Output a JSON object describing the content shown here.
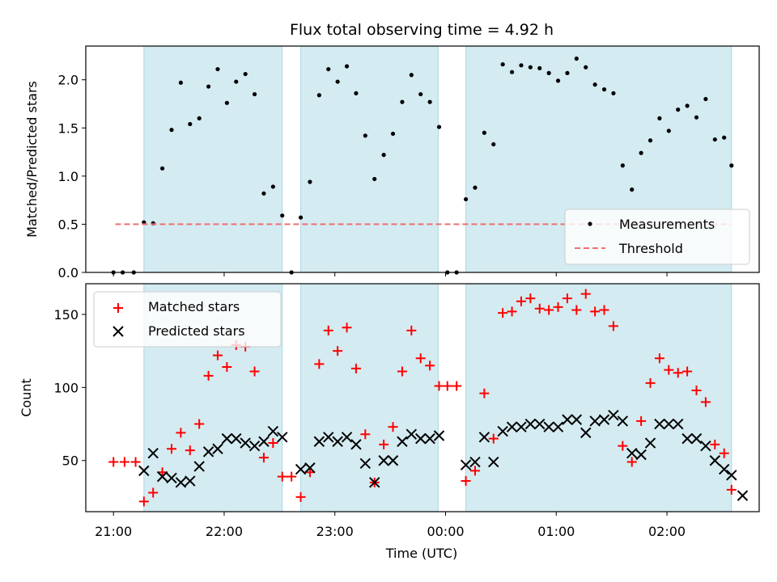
{
  "chart_data": {
    "type": "scatter",
    "title": "Flux total observing time = 4.92 h",
    "xlabel": "Time (UTC)",
    "xtick_labels": [
      "21:00",
      "22:00",
      "23:00",
      "00:00",
      "01:00",
      "02:00"
    ],
    "x_unit": "minutes after 21:00 UTC",
    "xlim": [
      -15,
      350
    ],
    "shaded_intervals": [
      [
        16.5,
        91.5
      ],
      [
        101.5,
        176
      ],
      [
        191,
        335
      ]
    ],
    "shade_color": "#d4ebf1",
    "panels": [
      {
        "ylabel": "Matched/Predicted stars",
        "ylim": [
          0,
          2.35
        ],
        "yticks": [
          0.0,
          0.5,
          1.0,
          1.5,
          2.0
        ],
        "ytick_labels": [
          "0.0",
          "0.5",
          "1.0",
          "1.5",
          "2.0"
        ],
        "legend_position": "lower-right",
        "series": [
          {
            "name": "Measurements",
            "marker": "dot",
            "color": "#000000",
            "points": [
              [
                0,
                0.0
              ],
              [
                5,
                0.0
              ],
              [
                11,
                0.0
              ],
              [
                16.5,
                0.52
              ],
              [
                21.5,
                0.51
              ],
              [
                26.5,
                1.08
              ],
              [
                31.5,
                1.48
              ],
              [
                36.5,
                1.97
              ],
              [
                41.5,
                1.54
              ],
              [
                46.5,
                1.6
              ],
              [
                51.5,
                1.93
              ],
              [
                56.5,
                2.11
              ],
              [
                61.5,
                1.76
              ],
              [
                66.5,
                1.98
              ],
              [
                71.5,
                2.06
              ],
              [
                76.5,
                1.85
              ],
              [
                81.5,
                0.82
              ],
              [
                86.5,
                0.89
              ],
              [
                91.5,
                0.59
              ],
              [
                96.5,
                0.0
              ],
              [
                101.5,
                0.57
              ],
              [
                106.5,
                0.94
              ],
              [
                111.5,
                1.84
              ],
              [
                116.5,
                2.11
              ],
              [
                121.5,
                1.98
              ],
              [
                126.5,
                2.14
              ],
              [
                131.5,
                1.86
              ],
              [
                136.5,
                1.42
              ],
              [
                141.5,
                0.97
              ],
              [
                146.5,
                1.22
              ],
              [
                151.5,
                1.44
              ],
              [
                156.5,
                1.77
              ],
              [
                161.5,
                2.05
              ],
              [
                166.5,
                1.85
              ],
              [
                171.5,
                1.77
              ],
              [
                176.5,
                1.51
              ],
              [
                181,
                0.0
              ],
              [
                186,
                0.0
              ],
              [
                191,
                0.76
              ],
              [
                196,
                0.88
              ],
              [
                201,
                1.45
              ],
              [
                206,
                1.33
              ],
              [
                211,
                2.16
              ],
              [
                216,
                2.08
              ],
              [
                221,
                2.15
              ],
              [
                226,
                2.13
              ],
              [
                231,
                2.12
              ],
              [
                236,
                2.07
              ],
              [
                241,
                1.99
              ],
              [
                246,
                2.07
              ],
              [
                251,
                2.22
              ],
              [
                256,
                2.13
              ],
              [
                261,
                1.95
              ],
              [
                266,
                1.9
              ],
              [
                271,
                1.86
              ],
              [
                276,
                1.11
              ],
              [
                281,
                0.86
              ],
              [
                286,
                1.24
              ],
              [
                291,
                1.37
              ],
              [
                296,
                1.6
              ],
              [
                301,
                1.47
              ],
              [
                306,
                1.69
              ],
              [
                311,
                1.73
              ],
              [
                316,
                1.61
              ],
              [
                321,
                1.8
              ],
              [
                326,
                1.38
              ],
              [
                331,
                1.4
              ],
              [
                335,
                1.11
              ]
            ]
          },
          {
            "name": "Threshold",
            "marker": "dashed-line",
            "color": "#f07070",
            "y": 0.5,
            "x_range": [
              1,
              335
            ]
          }
        ]
      },
      {
        "ylabel": "Count",
        "ylim": [
          15,
          171
        ],
        "yticks": [
          50,
          100,
          150
        ],
        "ytick_labels": [
          "50",
          "100",
          "150"
        ],
        "legend_position": "upper-left",
        "series": [
          {
            "name": "Matched stars",
            "marker": "plus",
            "color": "#ff0000",
            "points": [
              [
                0,
                49
              ],
              [
                6,
                49
              ],
              [
                12,
                49
              ],
              [
                16.5,
                22
              ],
              [
                21.5,
                28
              ],
              [
                26.5,
                42
              ],
              [
                31.5,
                58
              ],
              [
                36.5,
                69
              ],
              [
                41.5,
                57
              ],
              [
                46.5,
                75
              ],
              [
                51.5,
                108
              ],
              [
                56.5,
                122
              ],
              [
                61.5,
                114
              ],
              [
                66.5,
                129
              ],
              [
                71.5,
                128
              ],
              [
                76.5,
                111
              ],
              [
                81.5,
                52
              ],
              [
                86.5,
                62
              ],
              [
                91.5,
                39
              ],
              [
                96.5,
                39
              ],
              [
                101.5,
                25
              ],
              [
                106.5,
                42
              ],
              [
                111.5,
                116
              ],
              [
                116.5,
                139
              ],
              [
                121.5,
                125
              ],
              [
                126.5,
                141
              ],
              [
                131.5,
                113
              ],
              [
                136.5,
                68
              ],
              [
                141.5,
                35
              ],
              [
                146.5,
                61
              ],
              [
                151.5,
                73
              ],
              [
                156.5,
                111
              ],
              [
                161.5,
                139
              ],
              [
                166.5,
                120
              ],
              [
                171.5,
                115
              ],
              [
                176.5,
                101
              ],
              [
                181,
                101
              ],
              [
                186,
                101
              ],
              [
                191,
                36
              ],
              [
                196,
                43
              ],
              [
                201,
                96
              ],
              [
                206,
                65
              ],
              [
                211,
                151
              ],
              [
                216,
                152
              ],
              [
                221,
                159
              ],
              [
                226,
                161
              ],
              [
                231,
                154
              ],
              [
                236,
                153
              ],
              [
                241,
                155
              ],
              [
                246,
                161
              ],
              [
                251,
                153
              ],
              [
                256,
                164
              ],
              [
                261,
                152
              ],
              [
                266,
                153
              ],
              [
                271,
                142
              ],
              [
                276,
                60
              ],
              [
                281,
                49
              ],
              [
                286,
                77
              ],
              [
                291,
                103
              ],
              [
                296,
                120
              ],
              [
                301,
                112
              ],
              [
                306,
                110
              ],
              [
                311,
                111
              ],
              [
                316,
                98
              ],
              [
                321,
                90
              ],
              [
                326,
                61
              ],
              [
                331,
                55
              ],
              [
                335,
                30
              ]
            ]
          },
          {
            "name": "Predicted stars",
            "marker": "x",
            "color": "#000000",
            "points": [
              [
                16.5,
                43
              ],
              [
                21.5,
                55
              ],
              [
                26.5,
                39
              ],
              [
                31.5,
                38
              ],
              [
                36.5,
                35
              ],
              [
                41.5,
                36
              ],
              [
                46.5,
                46
              ],
              [
                51.5,
                56
              ],
              [
                56.5,
                58
              ],
              [
                61.5,
                65
              ],
              [
                66.5,
                65
              ],
              [
                71.5,
                62
              ],
              [
                76.5,
                60
              ],
              [
                81.5,
                63
              ],
              [
                86.5,
                70
              ],
              [
                91.5,
                66
              ],
              [
                101.5,
                44
              ],
              [
                106.5,
                45
              ],
              [
                111.5,
                63
              ],
              [
                116.5,
                66
              ],
              [
                121.5,
                63
              ],
              [
                126.5,
                66
              ],
              [
                131.5,
                61
              ],
              [
                136.5,
                48
              ],
              [
                141.5,
                35
              ],
              [
                146.5,
                50
              ],
              [
                151.5,
                50
              ],
              [
                156.5,
                63
              ],
              [
                161.5,
                68
              ],
              [
                166.5,
                65
              ],
              [
                171.5,
                65
              ],
              [
                176.5,
                67
              ],
              [
                191,
                47
              ],
              [
                196,
                49
              ],
              [
                201,
                66
              ],
              [
                206,
                49
              ],
              [
                211,
                70
              ],
              [
                216,
                73
              ],
              [
                221,
                73
              ],
              [
                226,
                75
              ],
              [
                231,
                75
              ],
              [
                236,
                73
              ],
              [
                241,
                73
              ],
              [
                246,
                78
              ],
              [
                251,
                78
              ],
              [
                256,
                69
              ],
              [
                261,
                77
              ],
              [
                266,
                78
              ],
              [
                271,
                81
              ],
              [
                276,
                77
              ],
              [
                281,
                55
              ],
              [
                286,
                54
              ],
              [
                291,
                62
              ],
              [
                296,
                75
              ],
              [
                301,
                75
              ],
              [
                306,
                75
              ],
              [
                311,
                65
              ],
              [
                316,
                65
              ],
              [
                321,
                60
              ],
              [
                326,
                50
              ],
              [
                331,
                44
              ],
              [
                335,
                40
              ],
              [
                341,
                26
              ]
            ]
          }
        ]
      }
    ]
  }
}
